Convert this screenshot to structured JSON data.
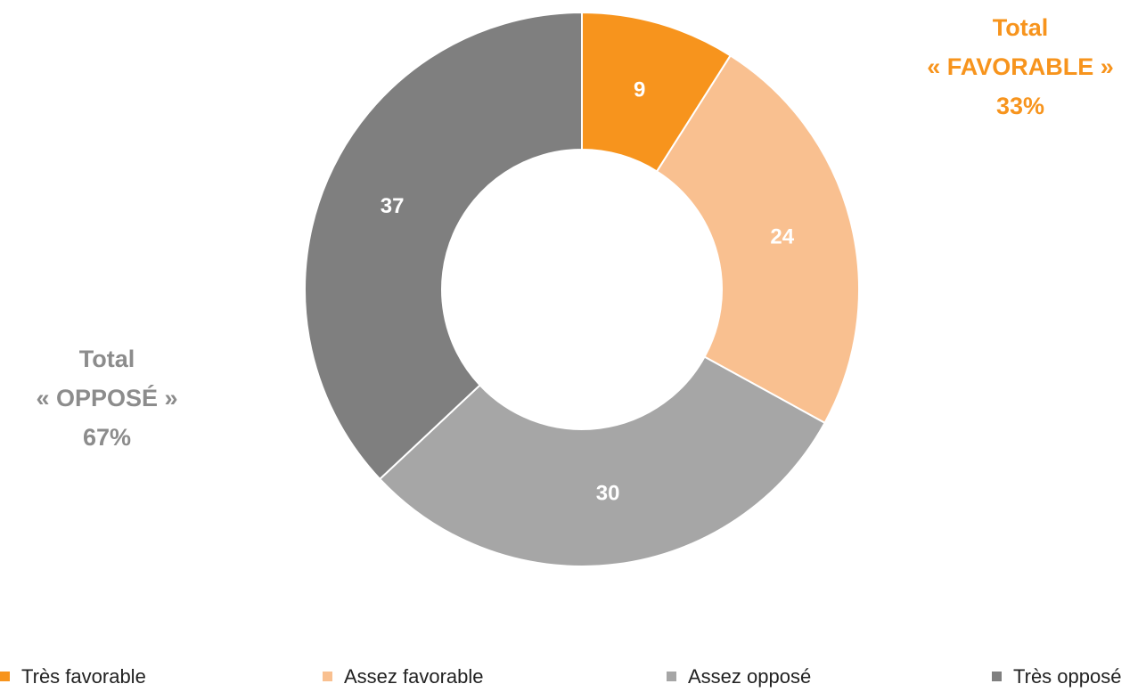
{
  "chart_data": {
    "type": "donut",
    "categories": [
      "Très favorable",
      "Assez favorable",
      "Assez opposé",
      "Très opposé"
    ],
    "values": [
      9,
      24,
      30,
      37
    ],
    "colors": [
      "#f7941d",
      "#f9c090",
      "#a6a6a6",
      "#7f7f7f"
    ],
    "legend": "bottom",
    "annotations": [
      {
        "lines": [
          "Total",
          "« FAVORABLE »",
          "33%"
        ],
        "color": "#f7941d"
      },
      {
        "lines": [
          "Total",
          "« OPPOSÉ »",
          "67%"
        ],
        "color": "#8c8c8c"
      }
    ]
  }
}
